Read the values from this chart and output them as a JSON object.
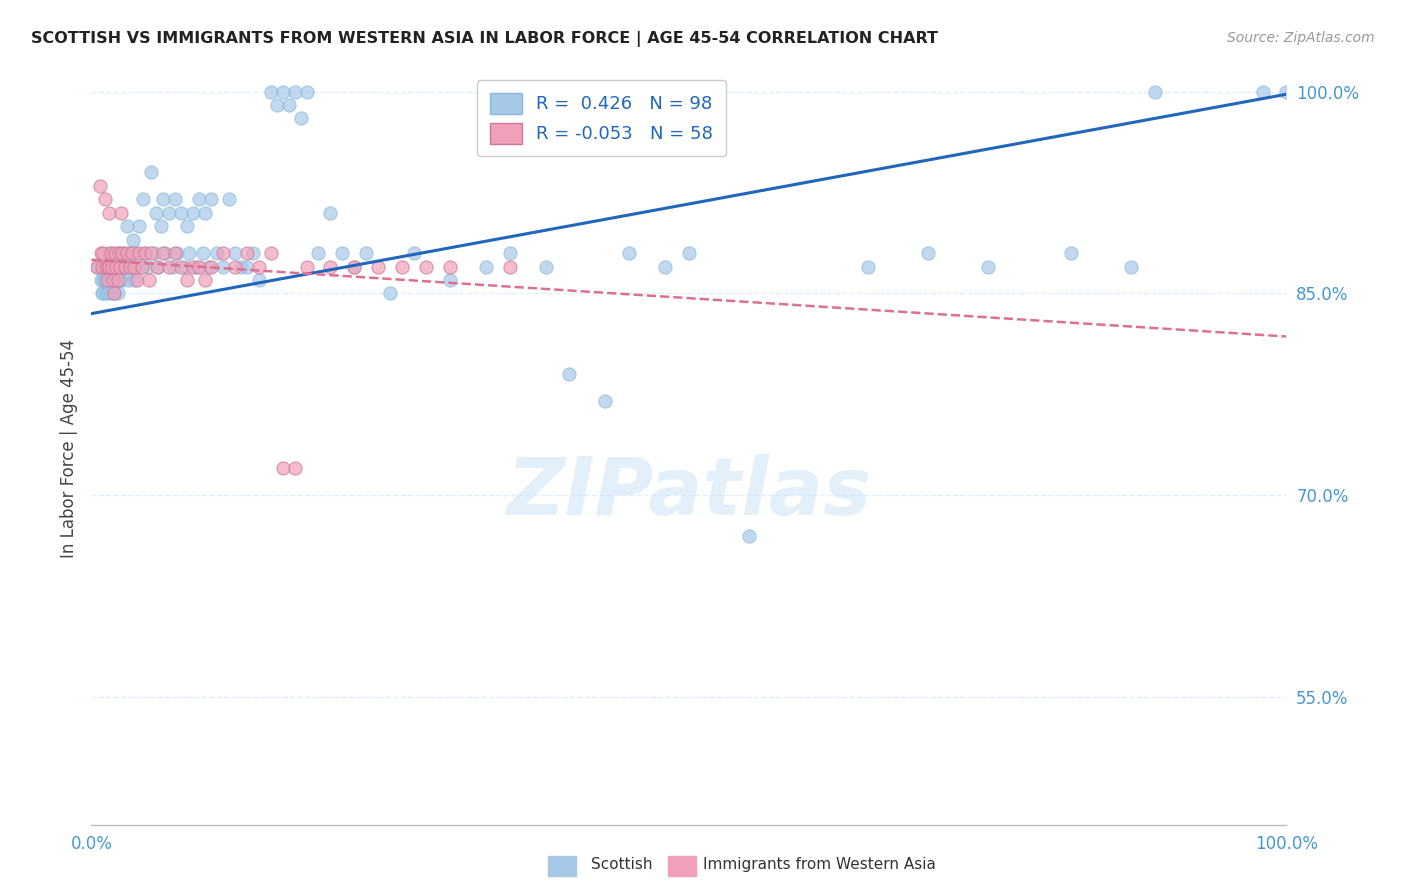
{
  "title": "SCOTTISH VS IMMIGRANTS FROM WESTERN ASIA IN LABOR FORCE | AGE 45-54 CORRELATION CHART",
  "source": "Source: ZipAtlas.com",
  "ylabel": "In Labor Force | Age 45-54",
  "xlim": [
    0.0,
    1.0
  ],
  "ylim": [
    0.455,
    1.015
  ],
  "ytick_vals": [
    0.55,
    0.7,
    0.85,
    1.0
  ],
  "xtick_vals": [
    0.0,
    0.1,
    0.2,
    0.3,
    0.4,
    0.5,
    0.6,
    0.7,
    0.8,
    0.9,
    1.0
  ],
  "blue_R": "0.426",
  "blue_N": "98",
  "pink_R": "-0.053",
  "pink_N": "58",
  "blue_color": "#a8c8e8",
  "pink_color": "#f0a0b8",
  "blue_line_color": "#2266bb",
  "pink_line_color": "#dd7090",
  "grid_color": "#ddeeff",
  "axis_tick_color": "#4499cc",
  "legend_label_blue": "Scottish",
  "legend_label_pink": "Immigrants from Western Asia",
  "blue_trend_x0": 0.0,
  "blue_trend_y0": 0.835,
  "blue_trend_x1": 1.0,
  "blue_trend_y1": 0.998,
  "pink_trend_x0": 0.0,
  "pink_trend_y0": 0.875,
  "pink_trend_x1": 1.0,
  "pink_trend_y1": 0.818,
  "blue_x": [
    0.005,
    0.008,
    0.009,
    0.01,
    0.01,
    0.011,
    0.012,
    0.013,
    0.014,
    0.015,
    0.015,
    0.016,
    0.017,
    0.018,
    0.019,
    0.02,
    0.021,
    0.022,
    0.023,
    0.024,
    0.025,
    0.026,
    0.027,
    0.028,
    0.03,
    0.031,
    0.032,
    0.034,
    0.035,
    0.036,
    0.038,
    0.04,
    0.042,
    0.043,
    0.045,
    0.047,
    0.05,
    0.052,
    0.054,
    0.056,
    0.058,
    0.06,
    0.062,
    0.065,
    0.068,
    0.07,
    0.072,
    0.075,
    0.078,
    0.08,
    0.082,
    0.085,
    0.088,
    0.09,
    0.093,
    0.095,
    0.098,
    0.1,
    0.105,
    0.11,
    0.115,
    0.12,
    0.125,
    0.13,
    0.135,
    0.14,
    0.15,
    0.155,
    0.16,
    0.165,
    0.17,
    0.175,
    0.18,
    0.19,
    0.2,
    0.21,
    0.22,
    0.23,
    0.25,
    0.27,
    0.3,
    0.33,
    0.35,
    0.38,
    0.4,
    0.43,
    0.45,
    0.48,
    0.5,
    0.55,
    0.65,
    0.7,
    0.75,
    0.82,
    0.87,
    0.89,
    0.98,
    1.0
  ],
  "blue_y": [
    0.87,
    0.86,
    0.85,
    0.86,
    0.85,
    0.86,
    0.85,
    0.86,
    0.85,
    0.88,
    0.86,
    0.85,
    0.87,
    0.86,
    0.85,
    0.87,
    0.86,
    0.85,
    0.88,
    0.86,
    0.87,
    0.86,
    0.88,
    0.87,
    0.9,
    0.86,
    0.88,
    0.87,
    0.89,
    0.86,
    0.88,
    0.9,
    0.87,
    0.92,
    0.88,
    0.87,
    0.94,
    0.88,
    0.91,
    0.87,
    0.9,
    0.92,
    0.88,
    0.91,
    0.87,
    0.92,
    0.88,
    0.91,
    0.87,
    0.9,
    0.88,
    0.91,
    0.87,
    0.92,
    0.88,
    0.91,
    0.87,
    0.92,
    0.88,
    0.87,
    0.92,
    0.88,
    0.87,
    0.87,
    0.88,
    0.86,
    1.0,
    0.99,
    1.0,
    0.99,
    1.0,
    0.98,
    1.0,
    0.88,
    0.91,
    0.88,
    0.87,
    0.88,
    0.85,
    0.88,
    0.86,
    0.87,
    0.88,
    0.87,
    0.79,
    0.77,
    0.88,
    0.87,
    0.88,
    0.67,
    0.87,
    0.88,
    0.87,
    0.88,
    0.87,
    1.0,
    1.0,
    1.0
  ],
  "pink_x": [
    0.005,
    0.007,
    0.008,
    0.009,
    0.01,
    0.011,
    0.012,
    0.013,
    0.014,
    0.015,
    0.015,
    0.016,
    0.017,
    0.018,
    0.019,
    0.02,
    0.021,
    0.022,
    0.023,
    0.024,
    0.025,
    0.026,
    0.028,
    0.03,
    0.032,
    0.034,
    0.036,
    0.038,
    0.04,
    0.042,
    0.045,
    0.048,
    0.05,
    0.055,
    0.06,
    0.065,
    0.07,
    0.075,
    0.08,
    0.085,
    0.09,
    0.095,
    0.1,
    0.11,
    0.12,
    0.13,
    0.14,
    0.15,
    0.16,
    0.17,
    0.18,
    0.2,
    0.22,
    0.24,
    0.26,
    0.28,
    0.3,
    0.35
  ],
  "pink_y": [
    0.87,
    0.93,
    0.88,
    0.87,
    0.88,
    0.92,
    0.87,
    0.86,
    0.87,
    0.91,
    0.87,
    0.88,
    0.87,
    0.86,
    0.85,
    0.88,
    0.87,
    0.86,
    0.88,
    0.87,
    0.91,
    0.88,
    0.87,
    0.88,
    0.87,
    0.88,
    0.87,
    0.86,
    0.88,
    0.87,
    0.88,
    0.86,
    0.88,
    0.87,
    0.88,
    0.87,
    0.88,
    0.87,
    0.86,
    0.87,
    0.87,
    0.86,
    0.87,
    0.88,
    0.87,
    0.88,
    0.87,
    0.88,
    0.72,
    0.72,
    0.87,
    0.87,
    0.87,
    0.87,
    0.87,
    0.87,
    0.87,
    0.87
  ]
}
